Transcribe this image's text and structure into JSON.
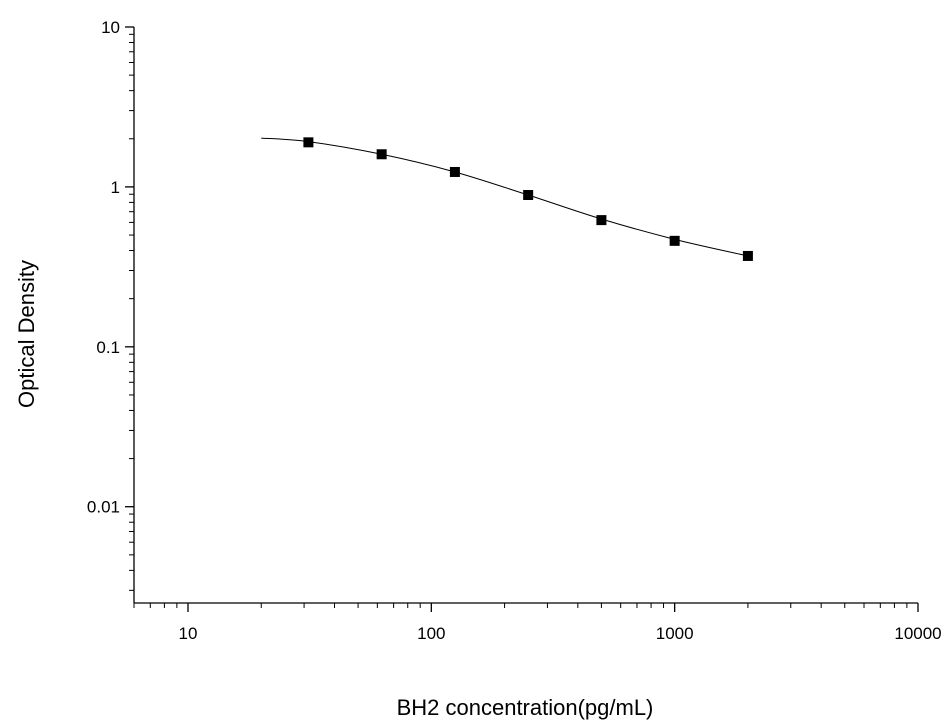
{
  "chart_data": {
    "type": "scatter",
    "title": "",
    "xlabel": "BH2 concentration(pg/mL)",
    "ylabel": "Optical Density",
    "xscale": "log",
    "yscale": "log",
    "xlim": [
      6,
      10000
    ],
    "ylim": [
      0.0025,
      10
    ],
    "x_ticks": [
      10,
      100,
      1000,
      10000
    ],
    "x_tick_labels": [
      "10",
      "100",
      "1000",
      "10000"
    ],
    "y_ticks": [
      0.01,
      0.1,
      1,
      10
    ],
    "y_tick_labels": [
      "0.01",
      "0.1",
      "1",
      "10"
    ],
    "grid": false,
    "legend": "none",
    "series": [
      {
        "kind": "points",
        "marker": "square",
        "color": "#000000",
        "x": [
          31.25,
          62.5,
          125,
          250,
          500,
          1000,
          2000
        ],
        "y": [
          1.9,
          1.6,
          1.24,
          0.89,
          0.62,
          0.46,
          0.37
        ]
      },
      {
        "kind": "fit-curve",
        "color": "#000000",
        "x": [
          20,
          31.25,
          62.5,
          125,
          250,
          500,
          1000,
          2000
        ],
        "y": [
          2.02,
          1.92,
          1.6,
          1.24,
          0.89,
          0.63,
          0.47,
          0.37
        ]
      }
    ]
  }
}
